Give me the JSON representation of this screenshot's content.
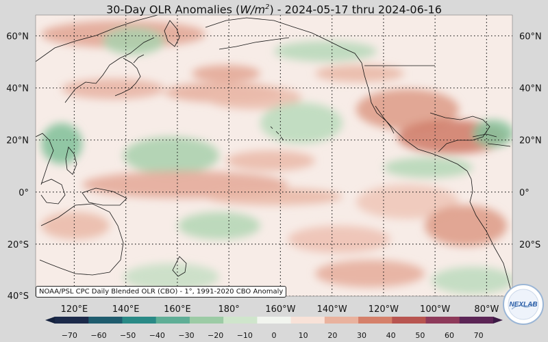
{
  "title": {
    "prefix": "30-Day OLR Anomalies (",
    "unit_base": "W/m",
    "unit_exp": "2",
    "suffix": ") - 2024-05-17 thru 2024-06-16"
  },
  "map": {
    "lon_range": [
      105,
      -70
    ],
    "lat_range": [
      -40,
      68
    ],
    "lat_ticks": [
      {
        "value": 60,
        "label": "60°N"
      },
      {
        "value": 40,
        "label": "40°N"
      },
      {
        "value": 20,
        "label": "20°N"
      },
      {
        "value": 0,
        "label": "0°"
      },
      {
        "value": -20,
        "label": "20°S"
      },
      {
        "value": -40,
        "label": "40°S"
      }
    ],
    "lon_ticks": [
      {
        "value": 120,
        "label": "120°E"
      },
      {
        "value": 140,
        "label": "140°E"
      },
      {
        "value": 160,
        "label": "160°E"
      },
      {
        "value": 180,
        "label": "180°"
      },
      {
        "value": -160,
        "label": "160°W"
      },
      {
        "value": -140,
        "label": "140°W"
      },
      {
        "value": -120,
        "label": "120°W"
      },
      {
        "value": -100,
        "label": "100°W"
      },
      {
        "value": -80,
        "label": "80°W"
      }
    ],
    "gridlines": true
  },
  "colorbar": {
    "ticks": [
      "−70",
      "−60",
      "−50",
      "−40",
      "−30",
      "−20",
      "−10",
      "0",
      "10",
      "20",
      "30",
      "40",
      "50",
      "60",
      "70"
    ],
    "range": [
      -75,
      75
    ],
    "colors": [
      "#1c2a4a",
      "#1f5c6e",
      "#2a8a86",
      "#5fae96",
      "#9ccba5",
      "#cfe5cc",
      "#f2f5ef",
      "#f8e2d8",
      "#e9b29e",
      "#d5806a",
      "#b85550",
      "#8e3a5a",
      "#5c2556"
    ]
  },
  "source": "NOAA/PSL CPC Daily Blended OLR (CBO) - 1°, 1991-2020 CBO Anomaly",
  "logo": {
    "text": "NEXLAB",
    "ring_color": "#9bb6d6",
    "text_color": "#2c5fa8"
  }
}
